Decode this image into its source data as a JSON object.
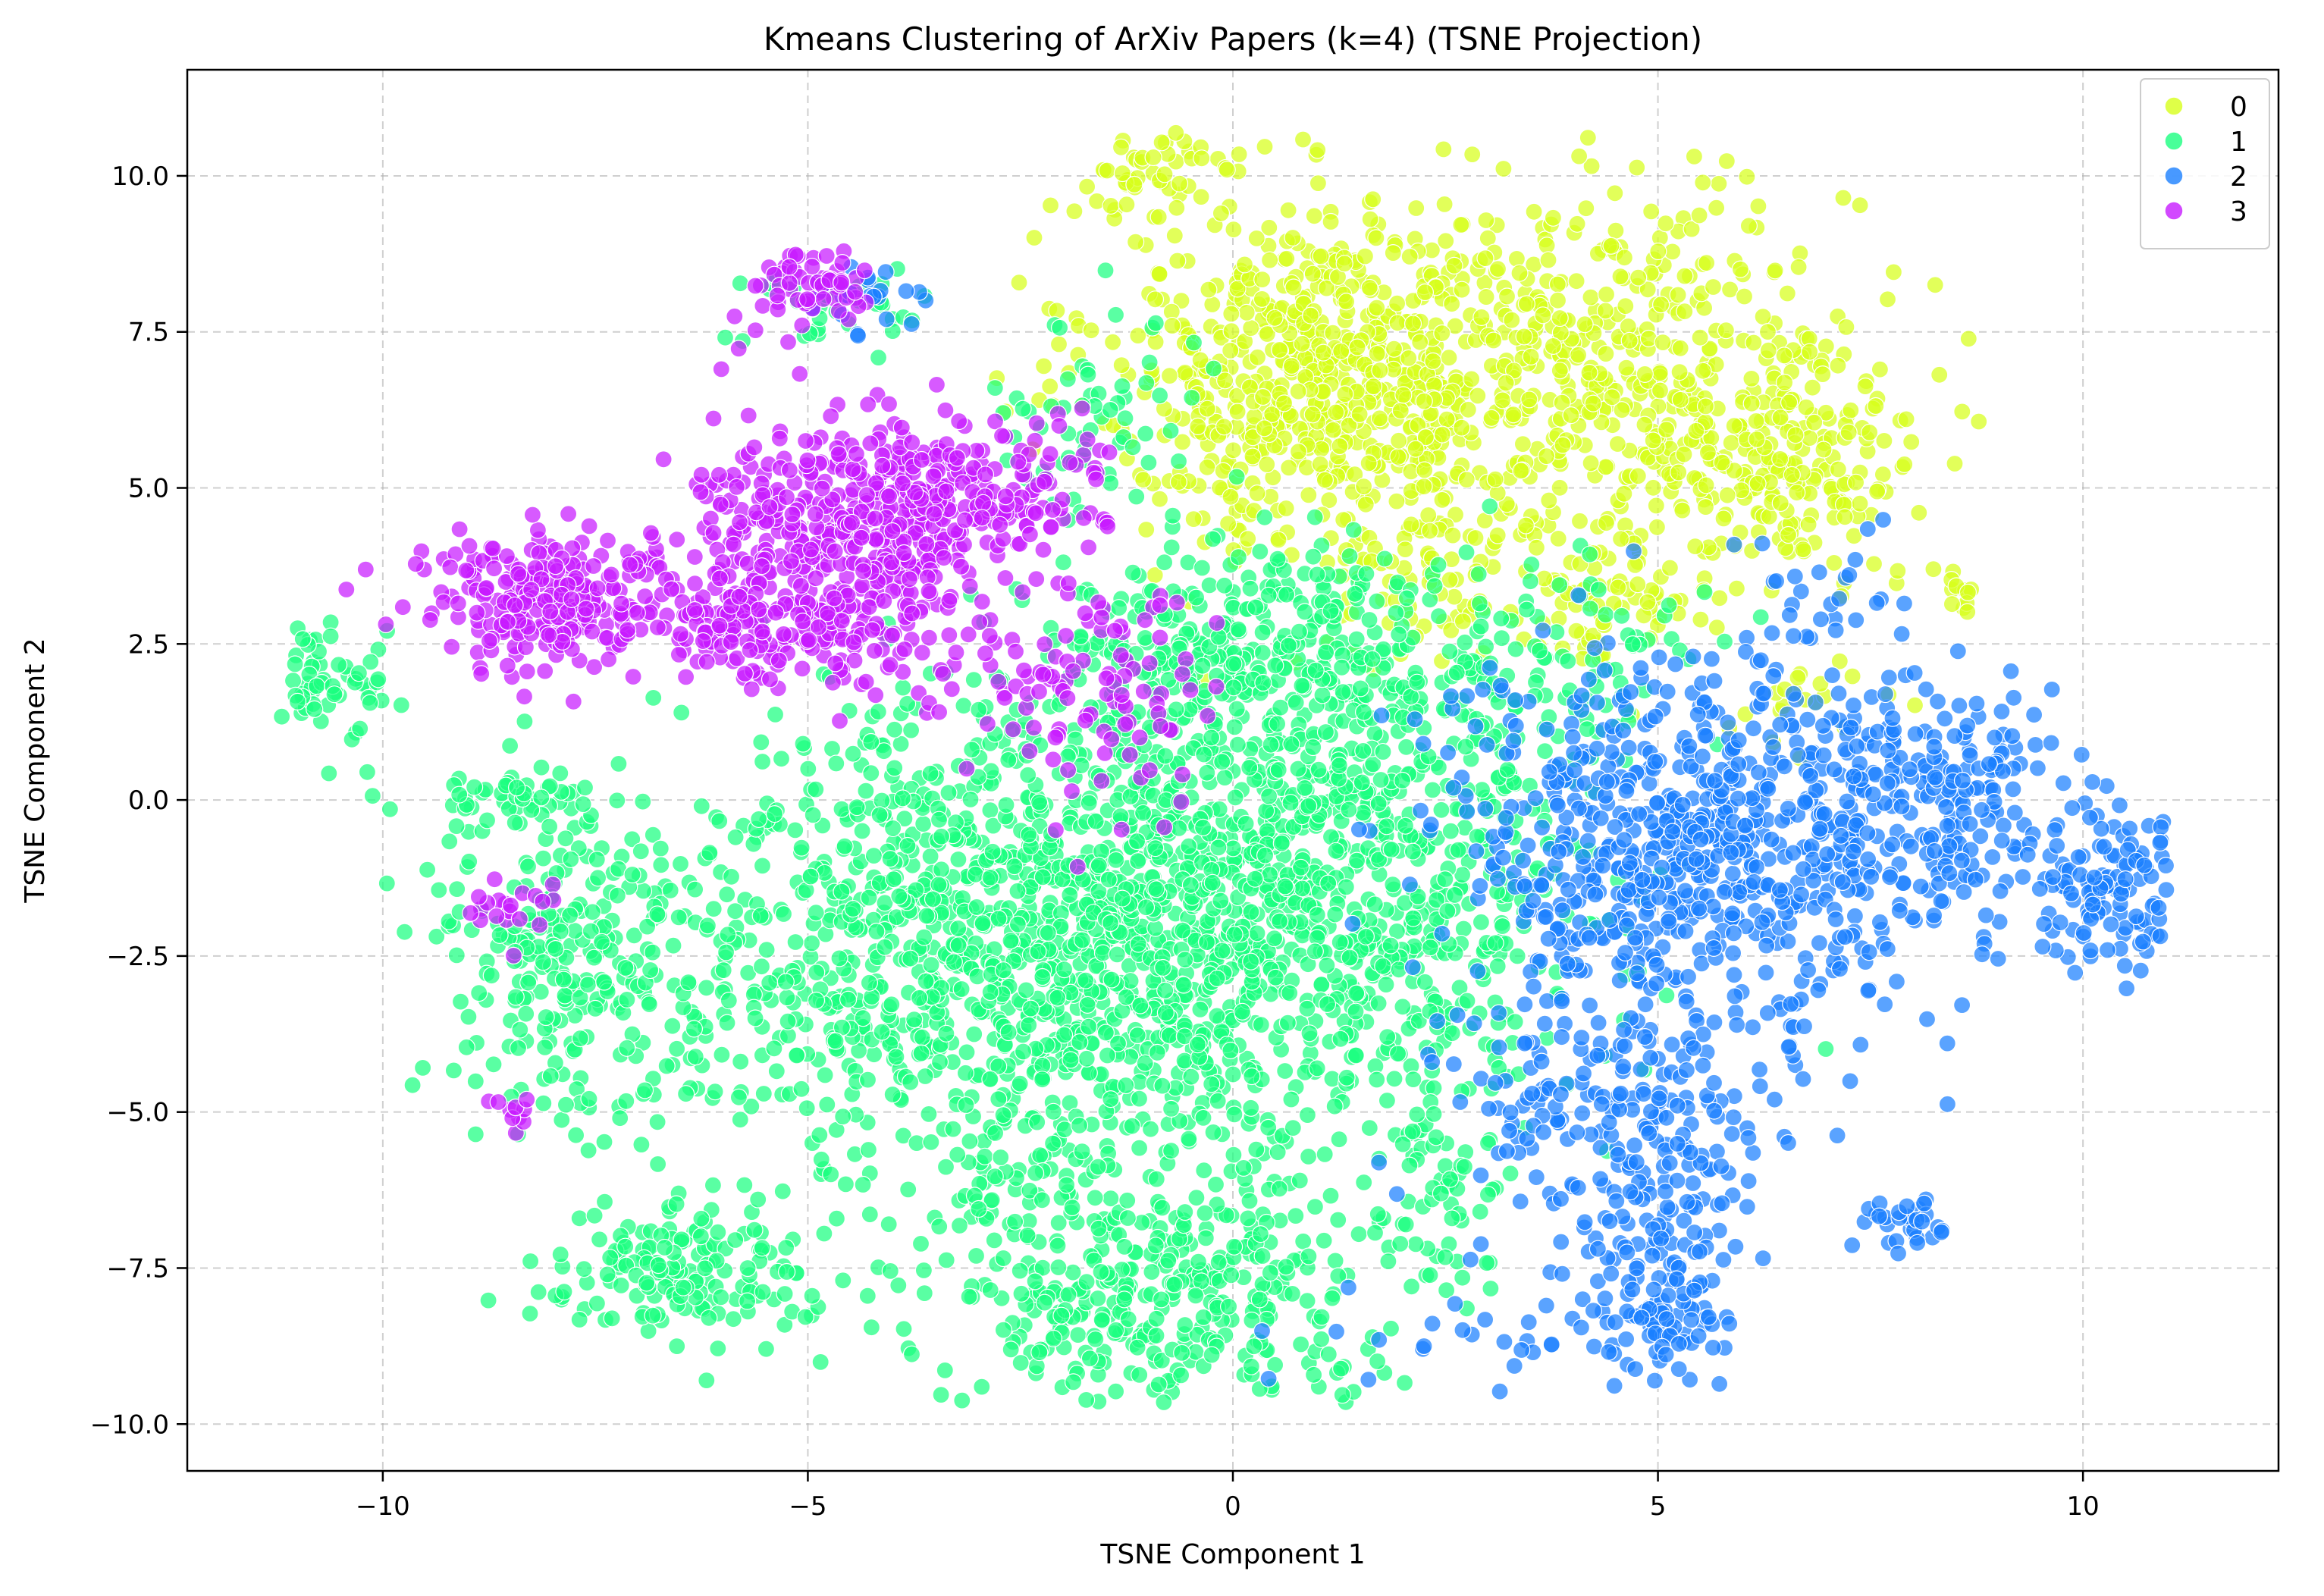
{
  "chart_data": {
    "type": "scatter",
    "title": "Kmeans Clustering of ArXiv Papers (k=4) (TSNE Projection)",
    "xlabel": "TSNE Component 1",
    "ylabel": "TSNE Component 2",
    "xlim": [
      -12.3,
      12.3
    ],
    "ylim": [
      -10.75,
      11.7
    ],
    "xticks": [
      -10,
      -5,
      0,
      5,
      10
    ],
    "xtick_labels": [
      "−10",
      "−5",
      "0",
      "5",
      "10"
    ],
    "yticks": [
      -10,
      -7.5,
      -5,
      -2.5,
      0,
      2.5,
      5,
      7.5,
      10
    ],
    "ytick_labels": [
      "−10.0",
      "−7.5",
      "−5.0",
      "−2.5",
      "0.0",
      "2.5",
      "5.0",
      "7.5",
      "10.0"
    ],
    "grid": true,
    "legend_position": "top-right",
    "series": [
      {
        "name": "0",
        "color": "#d7ff1a",
        "regions": [
          {
            "cx": 1.0,
            "cy": 6.8,
            "sx": 1.3,
            "sy": 1.4,
            "n": 650
          },
          {
            "cx": 4.4,
            "cy": 7.0,
            "sx": 1.5,
            "sy": 1.4,
            "n": 450
          },
          {
            "cx": 6.4,
            "cy": 5.4,
            "sx": 0.8,
            "sy": 0.9,
            "n": 200
          },
          {
            "cx": -0.9,
            "cy": 10.0,
            "sx": 0.5,
            "sy": 0.35,
            "n": 50
          },
          {
            "cx": 4.3,
            "cy": 3.2,
            "sx": 0.7,
            "sy": 0.6,
            "n": 80
          },
          {
            "cx": 2.4,
            "cy": 3.6,
            "sx": 0.7,
            "sy": 0.6,
            "n": 60
          },
          {
            "cx": 8.4,
            "cy": 3.4,
            "sx": 0.3,
            "sy": 0.15,
            "n": 15
          },
          {
            "cx": 6.8,
            "cy": 1.4,
            "sx": 0.4,
            "sy": 0.3,
            "n": 20
          }
        ]
      },
      {
        "name": "1",
        "color": "#1aff80",
        "regions": [
          {
            "cx": -2.8,
            "cy": -2.3,
            "sx": 2.1,
            "sy": 2.0,
            "n": 1300
          },
          {
            "cx": 1.0,
            "cy": -1.3,
            "sx": 1.6,
            "sy": 2.0,
            "n": 900
          },
          {
            "cx": -0.8,
            "cy": -7.8,
            "sx": 1.5,
            "sy": 1.0,
            "n": 420
          },
          {
            "cx": -6.5,
            "cy": -7.6,
            "sx": 0.8,
            "sy": 0.5,
            "n": 160
          },
          {
            "cx": -7.8,
            "cy": -2.5,
            "sx": 0.8,
            "sy": 1.2,
            "n": 220
          },
          {
            "cx": -10.6,
            "cy": 1.9,
            "sx": 0.35,
            "sy": 0.5,
            "n": 60
          },
          {
            "cx": -8.4,
            "cy": -0.1,
            "sx": 0.6,
            "sy": 0.25,
            "n": 50
          },
          {
            "cx": 0.2,
            "cy": 2.3,
            "sx": 1.1,
            "sy": 1.0,
            "n": 300
          },
          {
            "cx": -1.6,
            "cy": 6.1,
            "sx": 0.6,
            "sy": 0.8,
            "n": 60
          },
          {
            "cx": 3.6,
            "cy": 2.2,
            "sx": 1.0,
            "sy": 0.8,
            "n": 100
          },
          {
            "cx": 2.4,
            "cy": -6.5,
            "sx": 0.4,
            "sy": 0.7,
            "n": 40
          },
          {
            "cx": -4.8,
            "cy": 7.8,
            "sx": 0.6,
            "sy": 0.4,
            "n": 30
          }
        ]
      },
      {
        "name": "2",
        "color": "#1a80ff",
        "regions": [
          {
            "cx": 5.4,
            "cy": -0.8,
            "sx": 1.5,
            "sy": 1.5,
            "n": 700
          },
          {
            "cx": 8.3,
            "cy": 0.0,
            "sx": 0.9,
            "sy": 1.0,
            "n": 200
          },
          {
            "cx": 10.4,
            "cy": -1.5,
            "sx": 0.5,
            "sy": 0.6,
            "n": 110
          },
          {
            "cx": 5.0,
            "cy": -7.4,
            "sx": 0.5,
            "sy": 1.1,
            "n": 160
          },
          {
            "cx": 4.4,
            "cy": -4.9,
            "sx": 1.1,
            "sy": 0.9,
            "n": 170
          },
          {
            "cx": 8.0,
            "cy": -6.8,
            "sx": 0.3,
            "sy": 0.2,
            "n": 30
          },
          {
            "cx": 3.4,
            "cy": -8.7,
            "sx": 1.3,
            "sy": 0.4,
            "n": 40
          },
          {
            "cx": 6.8,
            "cy": 3.0,
            "sx": 0.6,
            "sy": 0.7,
            "n": 30
          },
          {
            "cx": -4.4,
            "cy": 8.0,
            "sx": 0.4,
            "sy": 0.3,
            "n": 25
          }
        ]
      },
      {
        "name": "3",
        "color": "#c71aff",
        "regions": [
          {
            "cx": -4.8,
            "cy": 3.9,
            "sx": 1.0,
            "sy": 1.0,
            "n": 480
          },
          {
            "cx": -3.2,
            "cy": 4.9,
            "sx": 0.9,
            "sy": 0.6,
            "n": 200
          },
          {
            "cx": -8.0,
            "cy": 3.2,
            "sx": 0.8,
            "sy": 0.55,
            "n": 260
          },
          {
            "cx": -5.0,
            "cy": 8.2,
            "sx": 0.45,
            "sy": 0.3,
            "n": 60
          },
          {
            "cx": -1.5,
            "cy": 1.5,
            "sx": 0.8,
            "sy": 1.0,
            "n": 100
          },
          {
            "cx": -8.6,
            "cy": -1.8,
            "sx": 0.25,
            "sy": 0.3,
            "n": 20
          },
          {
            "cx": -8.5,
            "cy": -5.1,
            "sx": 0.15,
            "sy": 0.2,
            "n": 10
          },
          {
            "cx": -6.0,
            "cy": 2.8,
            "sx": 0.4,
            "sy": 0.4,
            "n": 40
          }
        ]
      }
    ]
  }
}
